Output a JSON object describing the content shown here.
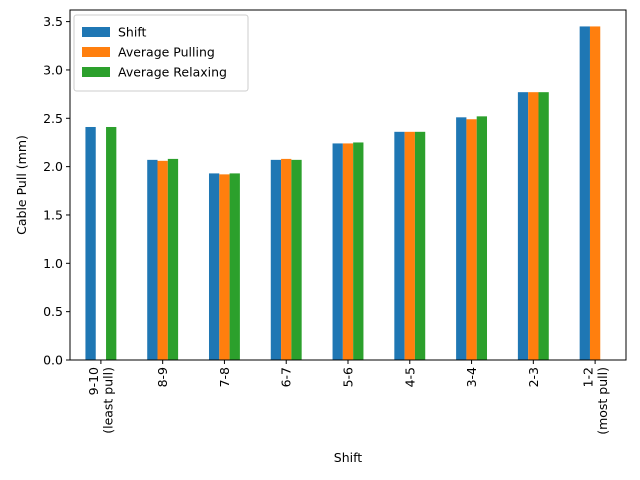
{
  "chart_data": {
    "type": "bar",
    "title": "",
    "xlabel": "Shift",
    "ylabel": "Cable Pull (mm)",
    "ylim": [
      0,
      3.62
    ],
    "yticks": [
      "0.0",
      "0.5",
      "1.0",
      "1.5",
      "2.0",
      "2.5",
      "3.0",
      "3.5"
    ],
    "grid": false,
    "legend_position": "top-left",
    "categories": [
      [
        "9-10",
        "(least pull)"
      ],
      [
        "8-9"
      ],
      [
        "7-8"
      ],
      [
        "6-7"
      ],
      [
        "5-6"
      ],
      [
        "4-5"
      ],
      [
        "3-4"
      ],
      [
        "2-3"
      ],
      [
        "1-2",
        "(most pull)"
      ]
    ],
    "series": [
      {
        "name": "Shift",
        "color": "#1f77b4",
        "values": [
          2.41,
          2.07,
          1.93,
          2.07,
          2.24,
          2.36,
          2.51,
          2.77,
          3.45
        ]
      },
      {
        "name": "Average Pulling",
        "color": "#ff7f0e",
        "values": [
          0,
          2.06,
          1.92,
          2.08,
          2.24,
          2.36,
          2.49,
          2.77,
          3.45
        ]
      },
      {
        "name": "Average Relaxing",
        "color": "#2ca02c",
        "values": [
          2.41,
          2.08,
          1.93,
          2.07,
          2.25,
          2.36,
          2.52,
          2.77,
          0
        ]
      }
    ]
  }
}
